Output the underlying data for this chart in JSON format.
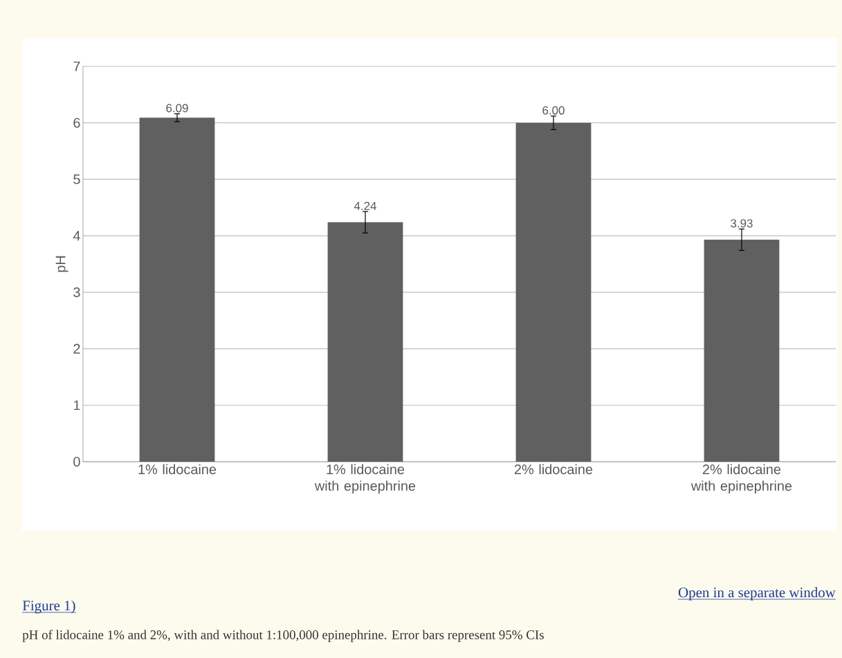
{
  "chart_data": {
    "type": "bar",
    "categories": [
      "1% lidocaine",
      "1% lidocaine with epinephrine",
      "2% lidocaine",
      "2% lidocaine with epinephrine"
    ],
    "values": [
      6.09,
      4.24,
      6.0,
      3.93
    ],
    "errors": [
      0.07,
      0.19,
      0.12,
      0.19
    ],
    "value_labels": [
      "6.09",
      "4.24",
      "6.00",
      "3.93"
    ],
    "color": "#606060",
    "ylabel": "pH",
    "ylim": [
      0,
      7
    ],
    "yticks": [
      0,
      1,
      2,
      3,
      4,
      5,
      6,
      7
    ],
    "grid": "y",
    "annotations": [
      "Open in a separate window",
      "Figure 1)",
      "pH of lidocaine 1% and 2%, with and without 1:100,000 epinephrine. Error bars represent 95% CIs"
    ]
  }
}
